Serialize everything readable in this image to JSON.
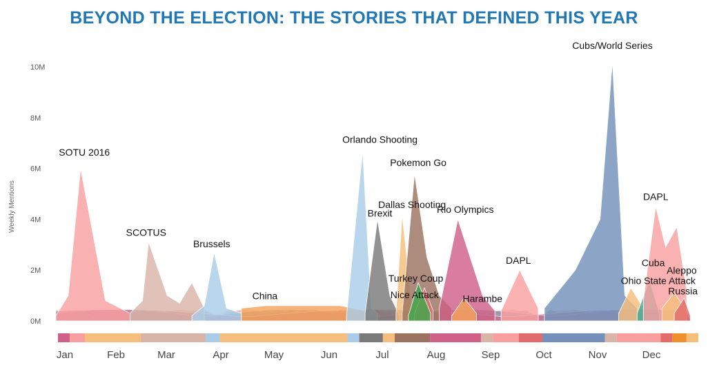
{
  "page": {
    "title": "BEYOND THE ELECTION: THE STORIES THAT DEFINED THIS YEAR",
    "title_color": "#1f77b4"
  },
  "chart_data": {
    "type": "area",
    "title": "BEYOND THE ELECTION: THE STORIES THAT DEFINED THIS YEAR",
    "xlabel": "",
    "ylabel": "Weekly Mentions",
    "x_unit": "week of year",
    "xlim": [
      1,
      52
    ],
    "ylim": [
      0,
      10.5
    ],
    "y_ticks": [
      {
        "value": 0,
        "label": "0M"
      },
      {
        "value": 2,
        "label": "2M"
      },
      {
        "value": 4,
        "label": "4M"
      },
      {
        "value": 6,
        "label": "6M"
      },
      {
        "value": 8,
        "label": "8M"
      },
      {
        "value": 10,
        "label": "10M"
      }
    ],
    "months": [
      {
        "label": "Jan",
        "week": 2.5
      },
      {
        "label": "Feb",
        "week": 7
      },
      {
        "label": "Mar",
        "week": 11.5
      },
      {
        "label": "Apr",
        "week": 16
      },
      {
        "label": "May",
        "week": 20.5
      },
      {
        "label": "Jun",
        "week": 25
      },
      {
        "label": "Jul",
        "week": 29.5
      },
      {
        "label": "Aug",
        "week": 34
      },
      {
        "label": "Sep",
        "week": 38.5
      },
      {
        "label": "Oct",
        "week": 43
      },
      {
        "label": "Nov",
        "week": 47.5
      },
      {
        "label": "Dec",
        "week": 51
      }
    ],
    "grid": false,
    "legend": "none",
    "series": [
      {
        "name": "SOTU 2016",
        "color": "#f8a0a0",
        "points": [
          [
            1,
            0.2
          ],
          [
            2,
            1.0
          ],
          [
            3,
            6.0
          ],
          [
            5,
            0.8
          ],
          [
            7,
            0.3
          ]
        ]
      },
      {
        "name": "SCOTUS",
        "color": "#d9b5a8",
        "points": [
          [
            7,
            0.3
          ],
          [
            8,
            0.8
          ],
          [
            8.5,
            3.1
          ],
          [
            10,
            1.0
          ],
          [
            11,
            0.7
          ],
          [
            12,
            1.5
          ],
          [
            13,
            0.5
          ]
        ]
      },
      {
        "name": "Brussels",
        "color": "#a9cde8",
        "points": [
          [
            12,
            0.2
          ],
          [
            13,
            0.6
          ],
          [
            13.8,
            2.7
          ],
          [
            14.8,
            0.5
          ],
          [
            16,
            0.3
          ]
        ]
      },
      {
        "name": "China",
        "color": "#f5a35a",
        "points": [
          [
            16,
            0.5
          ],
          [
            18,
            0.6
          ],
          [
            21,
            0.6
          ],
          [
            24,
            0.6
          ],
          [
            26,
            0.4
          ]
        ]
      },
      {
        "name": "Orlando Shooting",
        "color": "#a9cde8",
        "points": [
          [
            24.5,
            0.2
          ],
          [
            25.8,
            6.7
          ],
          [
            26.5,
            0.5
          ],
          [
            27,
            0.3
          ]
        ]
      },
      {
        "name": "Brexit",
        "color": "#7a7a7a",
        "points": [
          [
            26,
            0.3
          ],
          [
            27,
            4.0
          ],
          [
            28,
            1.0
          ],
          [
            28.8,
            0.2
          ]
        ]
      },
      {
        "name": "Dallas Shooting",
        "color": "#f5be7c",
        "points": [
          [
            28.5,
            0.3
          ],
          [
            29,
            4.2
          ],
          [
            29.8,
            0.5
          ]
        ]
      },
      {
        "name": "Pokemon Go",
        "color": "#9c7360",
        "points": [
          [
            29,
            0.3
          ],
          [
            30,
            5.8
          ],
          [
            31,
            2.5
          ],
          [
            32,
            1.0
          ],
          [
            33,
            0.5
          ]
        ]
      },
      {
        "name": "Turkey Coup",
        "color": "#e36b6b",
        "points": [
          [
            30,
            0.3
          ],
          [
            30.8,
            1.3
          ],
          [
            31.5,
            0.4
          ]
        ]
      },
      {
        "name": "Nice Attack",
        "color": "#3fa84c",
        "points": [
          [
            29.5,
            0.2
          ],
          [
            30.3,
            1.5
          ],
          [
            31.3,
            0.3
          ]
        ]
      },
      {
        "name": "Rio Olympics",
        "color": "#d06088",
        "points": [
          [
            32,
            0.5
          ],
          [
            33.5,
            4.0
          ],
          [
            35.5,
            1.0
          ],
          [
            36.5,
            0.4
          ]
        ]
      },
      {
        "name": "Harambe",
        "color": "#f5a35a",
        "points": [
          [
            33,
            0.2
          ],
          [
            34,
            0.9
          ],
          [
            35,
            0.3
          ]
        ]
      },
      {
        "name": "DAPL",
        "color": "#f8a0a0",
        "points": [
          [
            37,
            0.4
          ],
          [
            38.5,
            2.0
          ],
          [
            40,
            0.5
          ]
        ]
      },
      {
        "name": "Cubs/World Series",
        "color": "#7391bb",
        "points": [
          [
            40.5,
            0.5
          ],
          [
            43,
            2.0
          ],
          [
            45,
            4.0
          ],
          [
            46,
            10.2
          ],
          [
            47,
            1.0
          ],
          [
            48,
            0.5
          ]
        ]
      },
      {
        "name": "Ohio State Attack",
        "color": "#f5be7c",
        "points": [
          [
            46.5,
            0.3
          ],
          [
            47.5,
            1.3
          ],
          [
            48.5,
            0.5
          ]
        ]
      },
      {
        "name": "Cuba",
        "color": "#3fa89a",
        "points": [
          [
            48,
            0.3
          ],
          [
            49,
            1.6
          ],
          [
            49.8,
            0.3
          ]
        ]
      },
      {
        "name": "DAPL",
        "color": "#f8a0a0",
        "points": [
          [
            48.5,
            0.8
          ],
          [
            49.5,
            4.5
          ],
          [
            50.3,
            2.9
          ],
          [
            51.2,
            3.7
          ],
          [
            52,
            1.2
          ]
        ]
      },
      {
        "name": "Aleppo",
        "color": "#f5be7c",
        "points": [
          [
            50,
            0.5
          ],
          [
            51,
            1.1
          ],
          [
            52,
            0.4
          ]
        ]
      },
      {
        "name": "Russia",
        "color": "#e36b6b",
        "points": [
          [
            51,
            0.3
          ],
          [
            51.8,
            0.9
          ],
          [
            52.3,
            0.2
          ]
        ]
      }
    ],
    "annotations": [
      {
        "text": "SOTU 2016",
        "week": 3.3,
        "value": 6.5
      },
      {
        "text": "SCOTUS",
        "week": 8.3,
        "value": 3.35
      },
      {
        "text": "Brussels",
        "week": 13.6,
        "value": 2.9
      },
      {
        "text": "China",
        "week": 17.9,
        "value": 0.85
      },
      {
        "text": "Orlando Shooting",
        "week": 27.2,
        "value": 7.0
      },
      {
        "text": "Pokemon Go",
        "week": 30.3,
        "value": 6.1
      },
      {
        "text": "Dallas Shooting",
        "week": 29.8,
        "value": 4.45
      },
      {
        "text": "Brexit",
        "week": 27.2,
        "value": 4.1
      },
      {
        "text": "Rio Olympics",
        "week": 34.1,
        "value": 4.25
      },
      {
        "text": "Turkey Coup",
        "week": 30.1,
        "value": 1.55
      },
      {
        "text": "Nice Attack",
        "week": 30.0,
        "value": 0.9
      },
      {
        "text": "Harambe",
        "week": 35.5,
        "value": 0.75
      },
      {
        "text": "DAPL",
        "week": 38.4,
        "value": 2.25
      },
      {
        "text": "Cubs/World Series",
        "week": 46.0,
        "value": 10.7
      },
      {
        "text": "DAPL",
        "week": 49.5,
        "value": 4.75
      },
      {
        "text": "Cuba",
        "week": 49.3,
        "value": 2.15
      },
      {
        "text": "Ohio State Attack",
        "week": 49.7,
        "value": 1.45
      },
      {
        "text": "Aleppo",
        "week": 51.6,
        "value": 1.85
      },
      {
        "text": "Russia",
        "week": 51.7,
        "value": 1.05
      }
    ],
    "timeline_strip": [
      {
        "from": 1,
        "to": 2,
        "color": "#d06088"
      },
      {
        "from": 2,
        "to": 3.3,
        "color": "#f8a0a0"
      },
      {
        "from": 3.3,
        "to": 8,
        "color": "#f5be7c"
      },
      {
        "from": 8,
        "to": 13.5,
        "color": "#d9b5a8"
      },
      {
        "from": 13.5,
        "to": 14.7,
        "color": "#a9cde8"
      },
      {
        "from": 14.7,
        "to": 25.5,
        "color": "#f5be7c"
      },
      {
        "from": 25.5,
        "to": 26.5,
        "color": "#a9cde8"
      },
      {
        "from": 26.5,
        "to": 28.5,
        "color": "#7a7a7a"
      },
      {
        "from": 28.5,
        "to": 29.5,
        "color": "#f5be7c"
      },
      {
        "from": 29.5,
        "to": 32.5,
        "color": "#9c7360"
      },
      {
        "from": 32.5,
        "to": 36.8,
        "color": "#d06088"
      },
      {
        "from": 36.8,
        "to": 37.8,
        "color": "#d9b5a8"
      },
      {
        "from": 37.8,
        "to": 40,
        "color": "#f8a0a0"
      },
      {
        "from": 40,
        "to": 42,
        "color": "#e36b6b"
      },
      {
        "from": 42,
        "to": 47.3,
        "color": "#7391bb"
      },
      {
        "from": 47.3,
        "to": 48.3,
        "color": "#d9b5a8"
      },
      {
        "from": 48.3,
        "to": 52,
        "color": "#f8a0a0"
      },
      {
        "from": 52,
        "to": 53,
        "color": "#e36b6b"
      },
      {
        "from": 53,
        "to": 54.2,
        "color": "#f0902a"
      },
      {
        "from": 54.2,
        "to": 55.2,
        "color": "#f5be7c"
      }
    ]
  }
}
